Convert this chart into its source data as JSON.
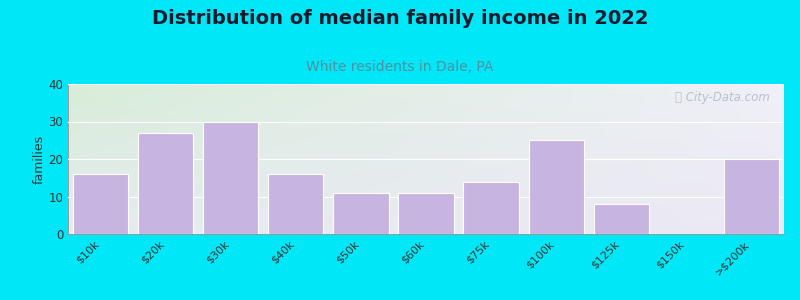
{
  "title": "Distribution of median family income in 2022",
  "subtitle": "White residents in Dale, PA",
  "ylabel": "families",
  "categories": [
    "$10k",
    "$20k",
    "$30k",
    "$40k",
    "$50k",
    "$60k",
    "$75k",
    "$100k",
    "$125k",
    "$150k",
    ">$200k"
  ],
  "values": [
    16,
    27,
    30,
    16,
    11,
    11,
    14,
    25,
    8,
    0,
    20
  ],
  "bar_color": "#c8b4e0",
  "bar_edgecolor": "#ffffff",
  "background_outer": "#00e8f8",
  "background_inner_topleft": "#d8edd8",
  "background_inner_bottomright": "#ece8f4",
  "ylim": [
    0,
    40
  ],
  "yticks": [
    0,
    10,
    20,
    30,
    40
  ],
  "title_fontsize": 14,
  "title_color": "#1a1a2e",
  "subtitle_fontsize": 10,
  "subtitle_color": "#5090a0",
  "ylabel_fontsize": 9,
  "watermark_text": "ⓘ City-Data.com",
  "watermark_color": "#b0b8c8"
}
